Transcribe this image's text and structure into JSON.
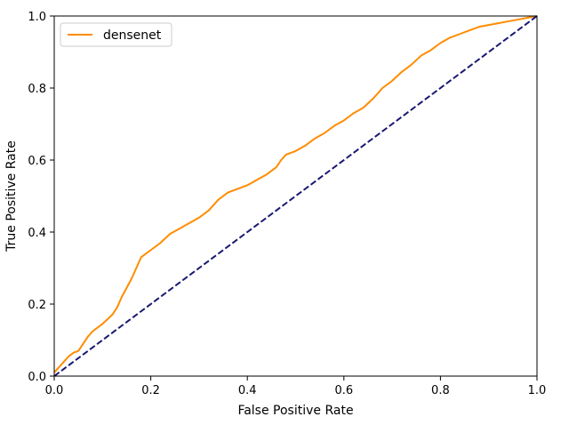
{
  "chart_data": {
    "type": "line",
    "title": "",
    "xlabel": "False Positive Rate",
    "ylabel": "True Positive Rate",
    "xlim": [
      0.0,
      1.0
    ],
    "ylim": [
      0.0,
      1.0
    ],
    "xticks": [
      "0.0",
      "0.2",
      "0.4",
      "0.6",
      "0.8",
      "1.0"
    ],
    "yticks": [
      "0.0",
      "0.2",
      "0.4",
      "0.6",
      "0.8",
      "1.0"
    ],
    "grid": false,
    "legend_position": "top-left",
    "series": [
      {
        "name": "densenet",
        "color": "#ff8c00",
        "style": "solid",
        "x": [
          0.0,
          0.01,
          0.02,
          0.03,
          0.04,
          0.05,
          0.06,
          0.07,
          0.08,
          0.1,
          0.12,
          0.13,
          0.14,
          0.15,
          0.16,
          0.17,
          0.18,
          0.2,
          0.22,
          0.24,
          0.26,
          0.28,
          0.3,
          0.32,
          0.34,
          0.36,
          0.38,
          0.4,
          0.42,
          0.44,
          0.46,
          0.47,
          0.48,
          0.5,
          0.52,
          0.54,
          0.56,
          0.58,
          0.6,
          0.62,
          0.64,
          0.66,
          0.68,
          0.7,
          0.72,
          0.74,
          0.76,
          0.78,
          0.8,
          0.82,
          0.84,
          0.86,
          0.88,
          0.9,
          0.92,
          0.94,
          0.96,
          0.98,
          1.0
        ],
        "y": [
          0.01,
          0.025,
          0.04,
          0.055,
          0.065,
          0.07,
          0.09,
          0.11,
          0.125,
          0.145,
          0.17,
          0.19,
          0.22,
          0.245,
          0.27,
          0.3,
          0.33,
          0.35,
          0.37,
          0.395,
          0.41,
          0.425,
          0.44,
          0.46,
          0.49,
          0.51,
          0.52,
          0.53,
          0.545,
          0.56,
          0.58,
          0.6,
          0.615,
          0.625,
          0.64,
          0.66,
          0.675,
          0.695,
          0.71,
          0.73,
          0.745,
          0.77,
          0.8,
          0.82,
          0.845,
          0.865,
          0.89,
          0.905,
          0.925,
          0.94,
          0.95,
          0.96,
          0.97,
          0.975,
          0.98,
          0.985,
          0.99,
          0.995,
          1.0
        ]
      },
      {
        "color": "#191970",
        "style": "dashed",
        "x": [
          0.0,
          1.0
        ],
        "y": [
          0.0,
          1.0
        ]
      }
    ]
  }
}
